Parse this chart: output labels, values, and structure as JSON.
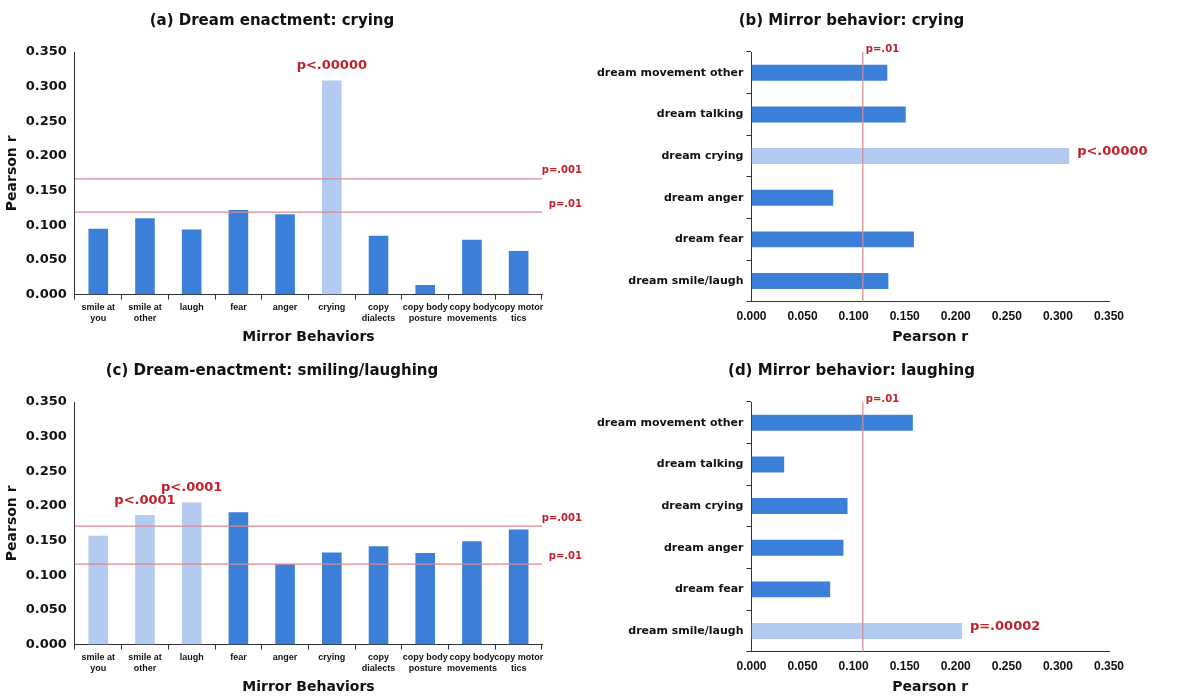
{
  "chart_data": [
    {
      "type": "bar",
      "title": "(a) Dream enactment: crying",
      "xlabel": "Mirror Behaviors",
      "ylabel": "Pearson r",
      "categories": [
        "smile at you",
        "smile at other",
        "laugh",
        "fear",
        "anger",
        "crying",
        "copy dialects",
        "copy body posture",
        "copy body movements",
        "copy motor tics"
      ],
      "values": [
        0.095,
        0.11,
        0.094,
        0.122,
        0.116,
        0.309,
        0.085,
        0.014,
        0.079,
        0.063
      ],
      "colors": [
        "#3c7fd8",
        "#3c7fd8",
        "#3c7fd8",
        "#3c7fd8",
        "#3c7fd8",
        "#b3cbf0",
        "#3c7fd8",
        "#3c7fd8",
        "#3c7fd8",
        "#3c7fd8"
      ],
      "ylim": [
        0,
        0.35
      ],
      "yticks": [
        {
          "value": 0,
          "label": "0.000"
        },
        {
          "value": 0.05,
          "label": "0.050"
        },
        {
          "value": 0.1,
          "label": "0.100"
        },
        {
          "value": 0.15,
          "label": "0.150"
        },
        {
          "value": 0.2,
          "label": "0.200"
        },
        {
          "value": 0.25,
          "label": "0.250"
        },
        {
          "value": 0.3,
          "label": "0.300"
        },
        {
          "value": 0.35,
          "label": "0.350"
        }
      ],
      "ref_lines": [
        {
          "axis": "y",
          "value": 0.167,
          "label": "p=.001",
          "color": "#d9888e"
        },
        {
          "axis": "y",
          "value": 0.119,
          "label": "p=.01",
          "color": "#d9888e"
        }
      ],
      "annotations": [
        {
          "text": "p<.00000",
          "x": "crying",
          "y": 0.309
        }
      ],
      "grid": false,
      "legend": false
    },
    {
      "type": "bar",
      "orientation": "horizontal",
      "title": "(b) Mirror behavior: crying",
      "xlabel": "Pearson r",
      "categories": [
        "dream movement other",
        "dream talking",
        "dream crying",
        "dream anger",
        "dream fear",
        "dream smile/laugh"
      ],
      "values": [
        0.133,
        0.151,
        0.311,
        0.08,
        0.159,
        0.134
      ],
      "colors": [
        "#3c7fd8",
        "#3c7fd8",
        "#b3cbf0",
        "#3c7fd8",
        "#3c7fd8",
        "#3c7fd8"
      ],
      "xlim": [
        0,
        0.35
      ],
      "xticks": [
        {
          "value": 0,
          "label": "0.000"
        },
        {
          "value": 0.05,
          "label": "0.050"
        },
        {
          "value": 0.1,
          "label": "0.100"
        },
        {
          "value": 0.15,
          "label": "0.150"
        },
        {
          "value": 0.2,
          "label": "0.200"
        },
        {
          "value": 0.25,
          "label": "0.250"
        },
        {
          "value": 0.3,
          "label": "0.300"
        },
        {
          "value": 0.35,
          "label": "0.350"
        }
      ],
      "ref_lines": [
        {
          "axis": "x",
          "value": 0.109,
          "label": "p=.01",
          "color": "#d9888e"
        }
      ],
      "annotations": [
        {
          "text": "p<.00000",
          "x": 0.311,
          "y": "dream crying"
        }
      ],
      "grid": false,
      "legend": false
    },
    {
      "type": "bar",
      "title": "(c) Dream-enactment: smiling/laughing",
      "xlabel": "Mirror Behaviors",
      "ylabel": "Pearson r",
      "categories": [
        "smile at you",
        "smile at other",
        "laugh",
        "fear",
        "anger",
        "crying",
        "copy dialects",
        "copy body posture",
        "copy body movements",
        "copy motor tics"
      ],
      "values": [
        0.157,
        0.187,
        0.205,
        0.191,
        0.116,
        0.133,
        0.142,
        0.132,
        0.149,
        0.166
      ],
      "colors": [
        "#b3cbf0",
        "#b3cbf0",
        "#b3cbf0",
        "#3c7fd8",
        "#3c7fd8",
        "#3c7fd8",
        "#3c7fd8",
        "#3c7fd8",
        "#3c7fd8",
        "#3c7fd8"
      ],
      "ylim": [
        0,
        0.35
      ],
      "yticks": [
        {
          "value": 0,
          "label": "0.000"
        },
        {
          "value": 0.05,
          "label": "0.050"
        },
        {
          "value": 0.1,
          "label": "0.100"
        },
        {
          "value": 0.15,
          "label": "0.150"
        },
        {
          "value": 0.2,
          "label": "0.200"
        },
        {
          "value": 0.25,
          "label": "0.250"
        },
        {
          "value": 0.3,
          "label": "0.300"
        },
        {
          "value": 0.35,
          "label": "0.350"
        }
      ],
      "ref_lines": [
        {
          "axis": "y",
          "value": 0.171,
          "label": "p=.001",
          "color": "#d9888e"
        },
        {
          "axis": "y",
          "value": 0.116,
          "label": "p=.01",
          "color": "#d9888e"
        }
      ],
      "annotations": [
        {
          "text": "p<.0001",
          "x": "smile at other",
          "y": 0.187
        },
        {
          "text": "p<.0001",
          "x": "laugh",
          "y": 0.205
        }
      ],
      "grid": false,
      "legend": false
    },
    {
      "type": "bar",
      "orientation": "horizontal",
      "title": "(d) Mirror behavior: laughing",
      "xlabel": "Pearson r",
      "categories": [
        "dream movement other",
        "dream talking",
        "dream crying",
        "dream anger",
        "dream fear",
        "dream smile/laugh"
      ],
      "values": [
        0.158,
        0.032,
        0.094,
        0.09,
        0.077,
        0.206
      ],
      "colors": [
        "#3c7fd8",
        "#3c7fd8",
        "#3c7fd8",
        "#3c7fd8",
        "#3c7fd8",
        "#b3cbf0"
      ],
      "xlim": [
        0,
        0.35
      ],
      "xticks": [
        {
          "value": 0,
          "label": "0.000"
        },
        {
          "value": 0.05,
          "label": "0.050"
        },
        {
          "value": 0.1,
          "label": "0.100"
        },
        {
          "value": 0.15,
          "label": "0.150"
        },
        {
          "value": 0.2,
          "label": "0.200"
        },
        {
          "value": 0.25,
          "label": "0.250"
        },
        {
          "value": 0.3,
          "label": "0.300"
        },
        {
          "value": 0.35,
          "label": "0.350"
        }
      ],
      "ref_lines": [
        {
          "axis": "x",
          "value": 0.109,
          "label": "p=.01",
          "color": "#d9888e"
        }
      ],
      "annotations": [
        {
          "text": "p=.00002",
          "x": 0.206,
          "y": "dream smile/laugh"
        }
      ],
      "grid": false,
      "legend": false
    }
  ]
}
